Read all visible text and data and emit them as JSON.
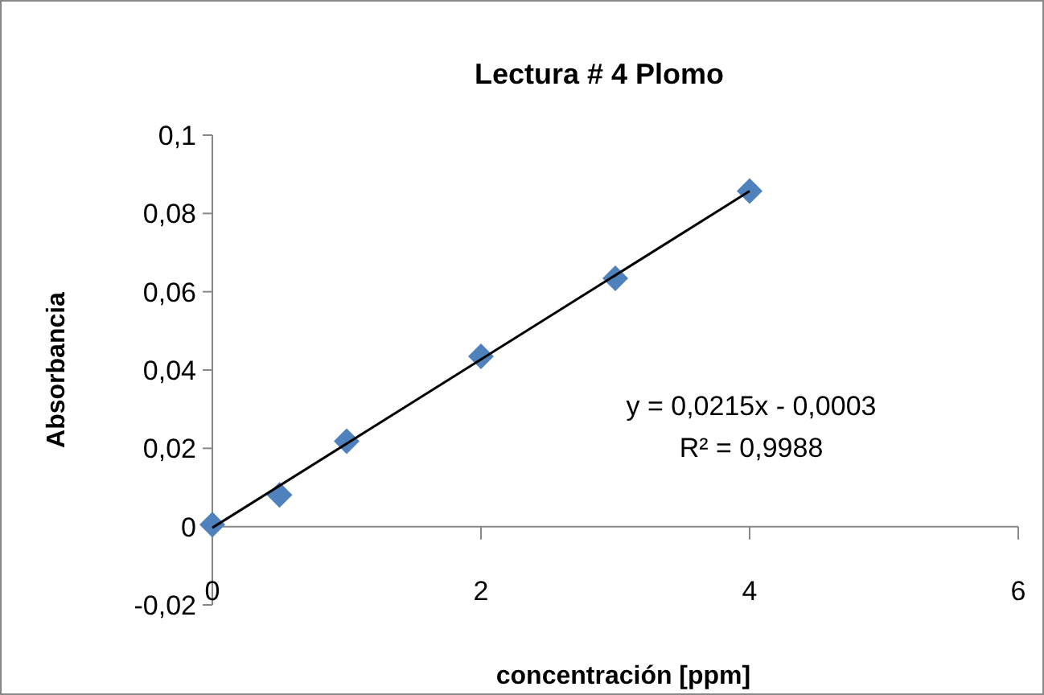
{
  "chart_data": {
    "type": "scatter",
    "title": "Lectura # 4 Plomo",
    "xlabel": "concentración [ppm]",
    "ylabel": "Absorbancia",
    "x": [
      0,
      0.5,
      1,
      2,
      3,
      4
    ],
    "series": [
      {
        "color": "#4f81bd",
        "marker": "diamond",
        "values": [
          0.0005,
          0.0081,
          0.0218,
          0.0435,
          0.0634,
          0.0857
        ]
      },
      {
        "type": "line",
        "color": "#000000",
        "marker": "none",
        "x": [
          0,
          4
        ],
        "values": [
          -0.0003,
          0.0857
        ]
      }
    ],
    "xlim": [
      0,
      6
    ],
    "xticks": [
      0,
      2,
      4,
      6
    ],
    "ylim": [
      -0.02,
      0.1
    ],
    "yticks": [
      {
        "value": -0.02,
        "label": "-0,02"
      },
      0,
      {
        "value": 0.02,
        "label": "0,02"
      },
      {
        "value": 0.04,
        "label": "0,04"
      },
      {
        "value": 0.06,
        "label": "0,06"
      },
      {
        "value": 0.08,
        "label": "0,08"
      },
      {
        "value": 0.1,
        "label": "0,1"
      }
    ],
    "grid": false,
    "annotations": [
      "y = 0,0215x - 0,0003",
      "R² = 0,9988"
    ]
  }
}
